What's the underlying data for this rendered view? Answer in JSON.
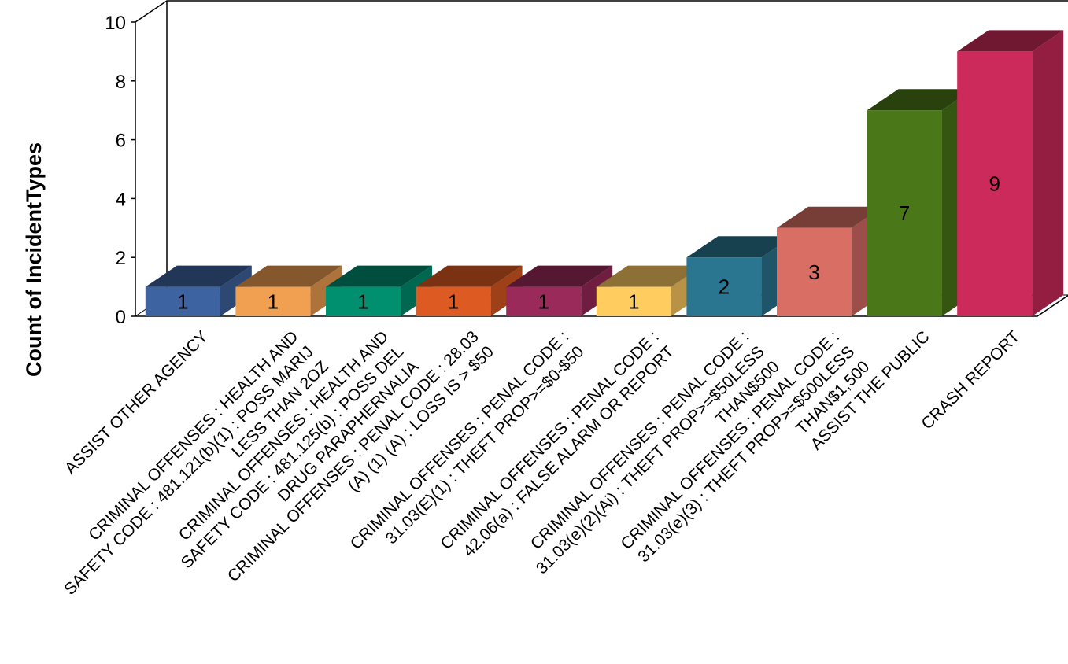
{
  "chart_data": {
    "type": "bar",
    "ylabel": "Count of IncidentTypes",
    "ylim": [
      0,
      10
    ],
    "yticks": [
      0,
      2,
      4,
      6,
      8,
      10
    ],
    "grid": false,
    "legend": "none",
    "categories": [
      [
        "ASSIST OTHER AGENCY"
      ],
      [
        "CRIMINAL OFFENSES : HEALTH AND",
        "SAFETY CODE : 481.121(b)(1) : POSS MARIJ",
        "LESS THAN 2OZ"
      ],
      [
        "CRIMINAL OFFENSES : HEALTH AND",
        "SAFETY CODE : 481.125(b) : POSS DEL",
        "DRUG PARAPHERNALIA"
      ],
      [
        "CRIMINAL OFFENSES : PENAL CODE : 28.03",
        "(A) (1) (A) : LOSS IS > $50"
      ],
      [
        "CRIMINAL OFFENSES : PENAL CODE :",
        "31.03(E)(1) : THEFT PROP>=$0-$50"
      ],
      [
        "CRIMINAL OFFENSES : PENAL CODE :",
        "42.06(a) : FALSE ALARM OR REPORT"
      ],
      [
        "CRIMINAL OFFENSES : PENAL CODE :",
        "31.03(e)(2)(Ai) : THEFT PROP>=$50LESS",
        "THAN$500"
      ],
      [
        "CRIMINAL OFFENSES : PENAL CODE :",
        "31.03(e)(3) : THEFT PROP>=$500LESS",
        "THAN$1,500"
      ],
      [
        "ASSIST THE PUBLIC"
      ],
      [
        "CRASH REPORT"
      ]
    ],
    "values": [
      1,
      1,
      1,
      1,
      1,
      1,
      2,
      3,
      7,
      9
    ],
    "data_labels": [
      "1",
      "1",
      "1",
      "1",
      "1",
      "1",
      "2",
      "3",
      "7",
      "9"
    ],
    "colors": [
      "#3d64a0",
      "#f0a050",
      "#009070",
      "#dd5a22",
      "#9a2a5a",
      "#ffcc60",
      "#2a7690",
      "#d86e64",
      "#4a7818",
      "#cc2a5a"
    ]
  }
}
